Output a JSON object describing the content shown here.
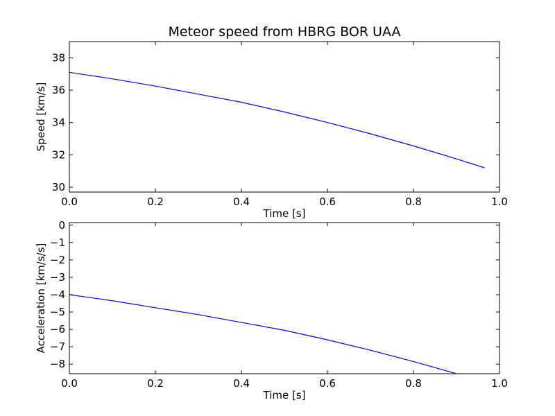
{
  "chart_data": [
    {
      "type": "line",
      "title": "Meteor speed from  HBRG BOR UAA",
      "xlabel": "Time [s]",
      "ylabel": "Speed [km/s]",
      "xlim": [
        0.0,
        1.0
      ],
      "ylim": [
        29.7,
        39.0
      ],
      "xticks": [
        0.0,
        0.2,
        0.4,
        0.6,
        0.8,
        1.0
      ],
      "xtick_labels": [
        "0.0",
        "0.2",
        "0.4",
        "0.6",
        "0.8",
        "1.0"
      ],
      "yticks": [
        30,
        32,
        34,
        36,
        38
      ],
      "ytick_labels": [
        "30",
        "32",
        "34",
        "36",
        "38"
      ],
      "grid": false,
      "series": [
        {
          "color": "#0000ff",
          "x": [
            0.0,
            0.1,
            0.2,
            0.3,
            0.4,
            0.5,
            0.6,
            0.7,
            0.8,
            0.9,
            0.965
          ],
          "y": [
            37.1,
            36.7,
            36.25,
            35.75,
            35.25,
            34.65,
            34.0,
            33.3,
            32.55,
            31.75,
            31.2
          ]
        }
      ]
    },
    {
      "type": "line",
      "title": "",
      "xlabel": "Time [s]",
      "ylabel": "Acceleration [km/s/s]",
      "xlim": [
        0.0,
        1.0
      ],
      "ylim": [
        -8.55,
        0.15
      ],
      "xticks": [
        0.0,
        0.2,
        0.4,
        0.6,
        0.8,
        1.0
      ],
      "xtick_labels": [
        "0.0",
        "0.2",
        "0.4",
        "0.6",
        "0.8",
        "1.0"
      ],
      "yticks": [
        0,
        -1,
        -2,
        -3,
        -4,
        -5,
        -6,
        -7,
        -8
      ],
      "ytick_labels": [
        "0",
        "−1",
        "−2",
        "−3",
        "−4",
        "−5",
        "−6",
        "−7",
        "−8"
      ],
      "grid": false,
      "series": [
        {
          "color": "#0000ff",
          "x": [
            0.0,
            0.1,
            0.2,
            0.3,
            0.4,
            0.5,
            0.6,
            0.7,
            0.8,
            0.9
          ],
          "y": [
            -4.0,
            -4.35,
            -4.75,
            -5.15,
            -5.6,
            -6.05,
            -6.6,
            -7.2,
            -7.85,
            -8.55
          ]
        }
      ]
    }
  ]
}
